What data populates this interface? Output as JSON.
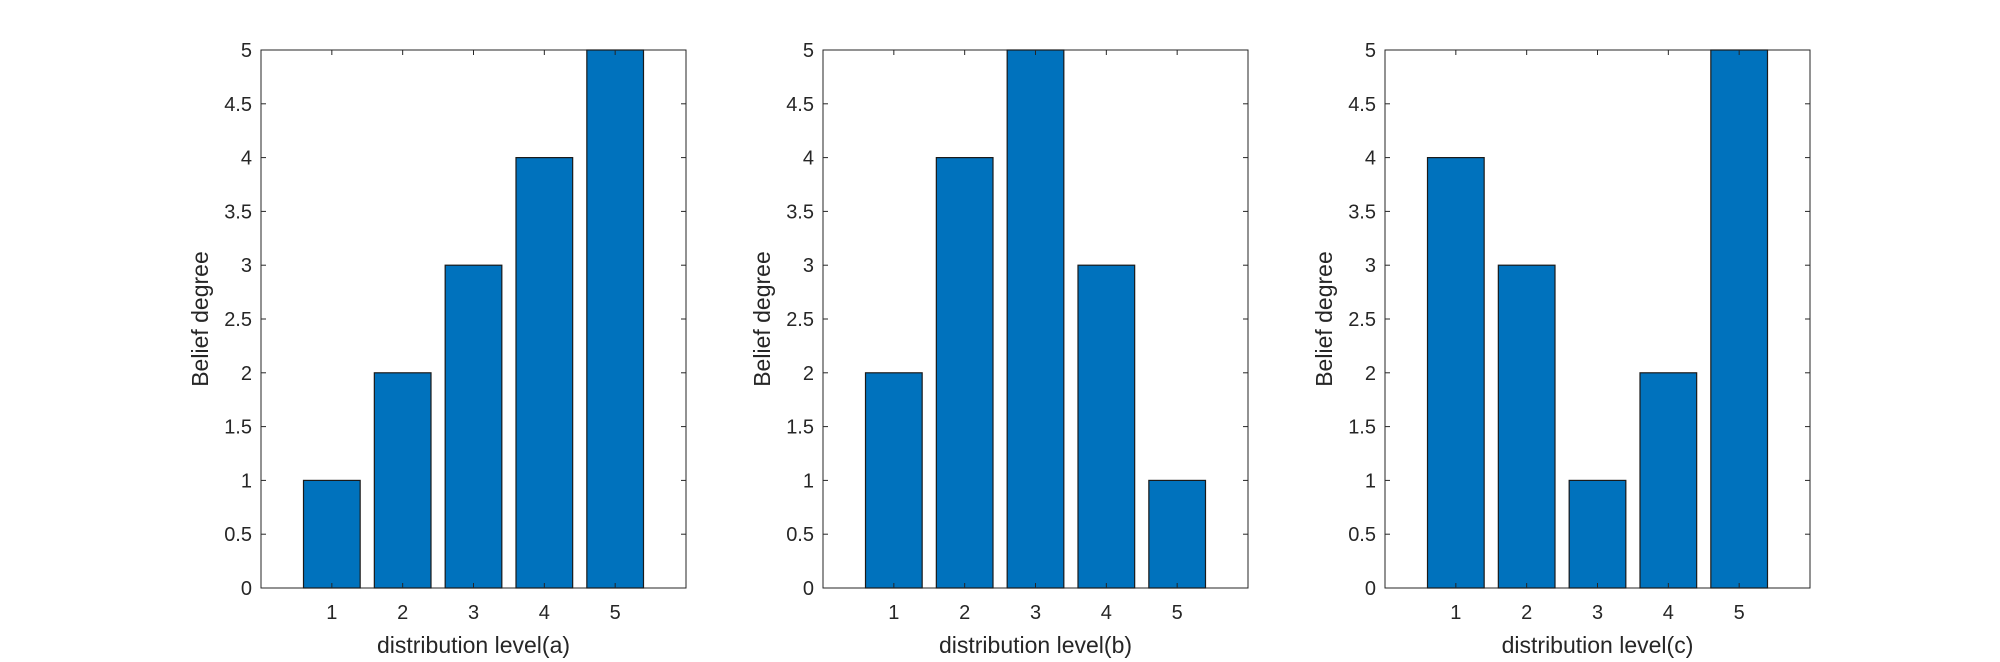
{
  "colors": {
    "bar": "#0072BD",
    "bar_edge": "#1a1a1a",
    "axis": "#262626",
    "background": "#ffffff"
  },
  "chart_data": [
    {
      "type": "bar",
      "title": "",
      "categories": [
        "1",
        "2",
        "3",
        "4",
        "5"
      ],
      "values": [
        1,
        2,
        3,
        4,
        5
      ],
      "xlabel": "distribution level(a)",
      "ylabel": "Belief degree",
      "ylim": [
        0,
        5
      ],
      "xlim": [
        0,
        6
      ],
      "yticks": [
        "0",
        "0.5",
        "1",
        "1.5",
        "2",
        "2.5",
        "3",
        "3.5",
        "4",
        "4.5",
        "5"
      ],
      "grid": false
    },
    {
      "type": "bar",
      "title": "",
      "categories": [
        "1",
        "2",
        "3",
        "4",
        "5"
      ],
      "values": [
        2,
        4,
        5,
        3,
        1
      ],
      "xlabel": "distribution level(b)",
      "ylabel": "Belief degree",
      "ylim": [
        0,
        5
      ],
      "xlim": [
        0,
        6
      ],
      "yticks": [
        "0",
        "0.5",
        "1",
        "1.5",
        "2",
        "2.5",
        "3",
        "3.5",
        "4",
        "4.5",
        "5"
      ],
      "grid": false
    },
    {
      "type": "bar",
      "title": "",
      "categories": [
        "1",
        "2",
        "3",
        "4",
        "5"
      ],
      "values": [
        4,
        3,
        1,
        2,
        5
      ],
      "xlabel": "distribution level(c)",
      "ylabel": "Belief degree",
      "ylim": [
        0,
        5
      ],
      "xlim": [
        0,
        6
      ],
      "yticks": [
        "0",
        "0.5",
        "1",
        "1.5",
        "2",
        "2.5",
        "3",
        "3.5",
        "4",
        "4.5",
        "5"
      ],
      "grid": false
    }
  ]
}
